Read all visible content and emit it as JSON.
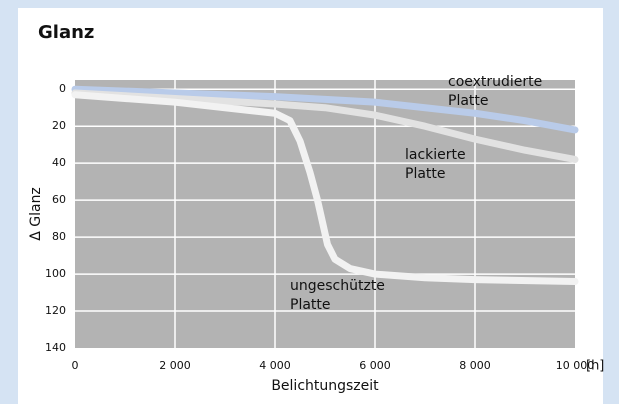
{
  "chart_data": {
    "type": "line",
    "title": "Glanz",
    "x_label": "Belichtungszeit",
    "x_unit": "[h]",
    "y_label": "Δ Glanz",
    "xlim": [
      0,
      10000
    ],
    "xticks": [
      0,
      {
        "value": 2000,
        "label": "2 000"
      },
      {
        "value": 4000,
        "label": "4 000"
      },
      {
        "value": 6000,
        "label": "6 000"
      },
      {
        "value": 8000,
        "label": "8 000"
      },
      {
        "value": 10000,
        "label": "10 000"
      }
    ],
    "ylim": [
      -5,
      140
    ],
    "y_inverted": true,
    "yticks": [
      0,
      20,
      40,
      60,
      80,
      100,
      120,
      140
    ],
    "grid": true,
    "series": [
      {
        "label": [
          "coextrudierte",
          "Platte"
        ],
        "color": "#b9cbe9",
        "x": [
          0,
          2000,
          4000,
          6000,
          8000,
          9000,
          10000
        ],
        "values": [
          0,
          2,
          4,
          7,
          13,
          17,
          22
        ]
      },
      {
        "label": [
          "lackierte",
          "Platte"
        ],
        "color": "#e2e2e2",
        "x": [
          0,
          2000,
          4000,
          5000,
          6000,
          7000,
          8000,
          9000,
          10000
        ],
        "values": [
          2,
          5,
          8,
          10,
          14,
          20,
          27,
          33,
          38
        ]
      },
      {
        "label": [
          "ungeschützte",
          "Platte"
        ],
        "color": "#f2f2f2",
        "x": [
          0,
          2000,
          3000,
          4000,
          4300,
          4500,
          4700,
          4850,
          4950,
          5050,
          5200,
          5500,
          6000,
          7000,
          8000,
          10000
        ],
        "values": [
          3,
          7,
          10,
          13,
          17,
          28,
          45,
          60,
          72,
          84,
          92,
          97,
          100,
          102,
          103,
          104
        ]
      }
    ]
  }
}
